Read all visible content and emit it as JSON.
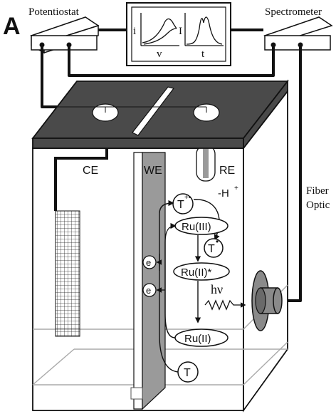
{
  "figure": {
    "panel_label": "A"
  },
  "instruments": {
    "potentiostat": "Potentiostat",
    "spectrometer": "Spectrometer",
    "fiber_optic_line1": "Fiber",
    "fiber_optic_line2": "Optic"
  },
  "monitor": {
    "left_plot_y": "i",
    "left_plot_x": "v",
    "right_plot_y": "I",
    "right_plot_x": "t"
  },
  "cell": {
    "counter_electrode": "CE",
    "working_electrode": "WE",
    "reference_electrode": "RE"
  },
  "mechanism": {
    "t_radical_cation": "T",
    "t_radical_cation_sup": "+•",
    "deprotonation": "-H",
    "deprotonation_sup": "+",
    "ru_iii": "Ru(III)",
    "t_radical": "T",
    "t_radical_sup": "•",
    "ru_ii_excited": "Ru(II)*",
    "photon": "hν",
    "ru_ii": "Ru(II)",
    "t": "T",
    "electron": "e"
  },
  "colors": {
    "lid": "#4a4a4a",
    "working_electrode": "#9a9a9a",
    "reference_tip": "#9a9a9a",
    "lens": "#8a8a8a",
    "line": "#111111"
  }
}
